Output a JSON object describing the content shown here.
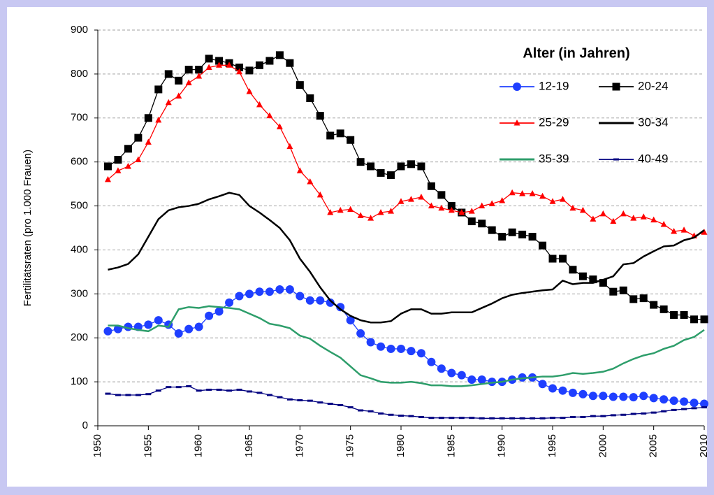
{
  "chart_data": {
    "type": "line",
    "y_label": "Fertilitätsraten (pro 1.000 Frauen)",
    "legend_title": "Alter (in Jahren)",
    "legend": "upper right",
    "grid": true,
    "xlim": [
      1950,
      2010
    ],
    "xticks": [
      1950,
      1955,
      1960,
      1965,
      1970,
      1975,
      1980,
      1985,
      1990,
      1995,
      2000,
      2005,
      2010
    ],
    "ylim": [
      0,
      900
    ],
    "yticks": [
      0,
      100,
      200,
      300,
      400,
      500,
      600,
      700,
      800,
      900
    ],
    "x": [
      1951,
      1952,
      1953,
      1954,
      1955,
      1956,
      1957,
      1958,
      1959,
      1960,
      1961,
      1962,
      1963,
      1964,
      1965,
      1966,
      1967,
      1968,
      1969,
      1970,
      1971,
      1972,
      1973,
      1974,
      1975,
      1976,
      1977,
      1978,
      1979,
      1980,
      1981,
      1982,
      1983,
      1984,
      1985,
      1986,
      1987,
      1988,
      1989,
      1990,
      1991,
      1992,
      1993,
      1994,
      1995,
      1996,
      1997,
      1998,
      1999,
      2000,
      2001,
      2002,
      2003,
      2004,
      2005,
      2006,
      2007,
      2008,
      2009,
      2010
    ],
    "series": [
      {
        "name": "12-19",
        "color": "#1f3fff",
        "marker": "circle",
        "values": [
          215,
          220,
          225,
          225,
          230,
          240,
          230,
          210,
          220,
          225,
          250,
          260,
          280,
          295,
          300,
          305,
          305,
          310,
          310,
          295,
          285,
          285,
          280,
          270,
          240,
          210,
          190,
          180,
          175,
          175,
          170,
          165,
          145,
          130,
          120,
          115,
          105,
          105,
          100,
          100,
          105,
          110,
          110,
          95,
          85,
          80,
          75,
          72,
          68,
          68,
          66,
          66,
          65,
          68,
          63,
          60,
          57,
          55,
          52,
          50
        ]
      },
      {
        "name": "20-24",
        "color": "#000000",
        "marker": "square",
        "values": [
          590,
          605,
          630,
          655,
          700,
          765,
          800,
          785,
          810,
          810,
          835,
          830,
          825,
          815,
          808,
          820,
          830,
          843,
          825,
          775,
          745,
          705,
          660,
          665,
          650,
          600,
          590,
          575,
          570,
          590,
          595,
          590,
          545,
          525,
          500,
          485,
          465,
          460,
          445,
          430,
          440,
          435,
          430,
          410,
          380,
          380,
          355,
          340,
          333,
          325,
          305,
          308,
          288,
          290,
          275,
          265,
          252,
          252,
          242,
          242
        ]
      },
      {
        "name": "25-29",
        "color": "#ff0000",
        "marker": "triangle",
        "values": [
          560,
          580,
          590,
          605,
          645,
          695,
          735,
          750,
          780,
          795,
          815,
          820,
          820,
          805,
          760,
          730,
          705,
          680,
          635,
          580,
          555,
          525,
          485,
          490,
          492,
          478,
          472,
          485,
          488,
          510,
          515,
          520,
          500,
          495,
          490,
          485,
          488,
          500,
          505,
          512,
          530,
          528,
          528,
          522,
          510,
          515,
          495,
          490,
          470,
          482,
          465,
          482,
          472,
          475,
          468,
          458,
          442,
          445,
          432,
          440
        ]
      },
      {
        "name": "30-34",
        "color": "#000000",
        "marker": "none",
        "values": [
          355,
          360,
          368,
          390,
          430,
          470,
          490,
          497,
          500,
          505,
          515,
          522,
          530,
          525,
          500,
          485,
          468,
          450,
          422,
          380,
          350,
          315,
          285,
          265,
          250,
          240,
          235,
          235,
          238,
          255,
          265,
          265,
          255,
          255,
          258,
          258,
          258,
          268,
          278,
          290,
          298,
          302,
          305,
          308,
          310,
          330,
          322,
          325,
          325,
          332,
          340,
          367,
          370,
          385,
          397,
          408,
          410,
          422,
          428,
          445
        ]
      },
      {
        "name": "35-39",
        "color": "#2e9e6b",
        "marker": "none",
        "values": [
          228,
          228,
          222,
          218,
          215,
          228,
          225,
          265,
          270,
          268,
          272,
          270,
          268,
          265,
          255,
          245,
          232,
          228,
          222,
          205,
          198,
          182,
          168,
          155,
          135,
          115,
          108,
          100,
          98,
          98,
          100,
          97,
          92,
          92,
          90,
          90,
          92,
          95,
          98,
          100,
          105,
          108,
          110,
          112,
          112,
          115,
          120,
          118,
          120,
          123,
          130,
          142,
          152,
          160,
          165,
          175,
          182,
          195,
          202,
          218
        ]
      },
      {
        "name": "40-49",
        "color": "#000080",
        "marker": "dash",
        "values": [
          73,
          70,
          70,
          70,
          72,
          80,
          88,
          88,
          90,
          80,
          82,
          82,
          80,
          82,
          78,
          75,
          70,
          65,
          60,
          58,
          57,
          53,
          50,
          47,
          42,
          35,
          33,
          28,
          25,
          23,
          22,
          20,
          18,
          18,
          18,
          18,
          18,
          17,
          17,
          17,
          17,
          17,
          17,
          17,
          18,
          18,
          20,
          20,
          22,
          22,
          24,
          25,
          27,
          28,
          30,
          33,
          36,
          38,
          40,
          42
        ]
      }
    ]
  }
}
